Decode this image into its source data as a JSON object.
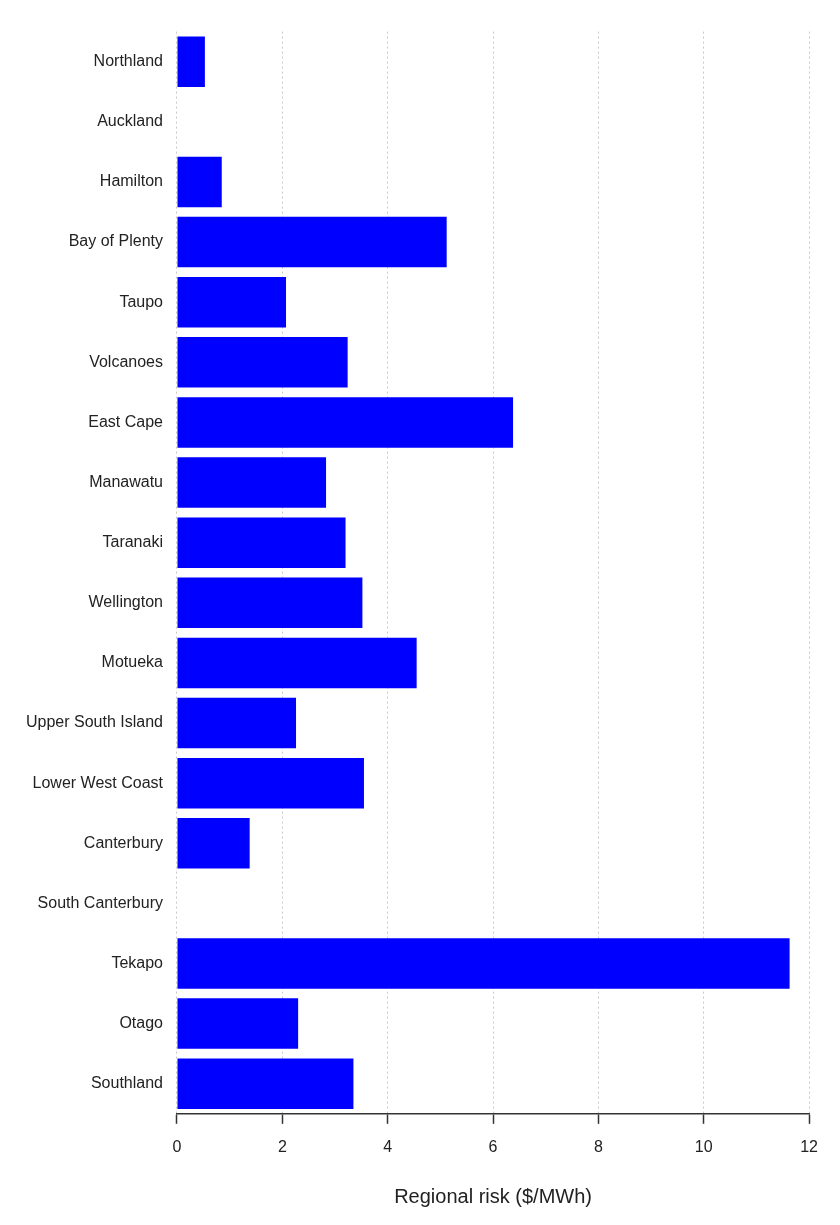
{
  "chart_data": {
    "type": "bar",
    "orientation": "horizontal",
    "xlabel": "Regional risk ($/MWh)",
    "categories": [
      "Northland",
      "Auckland",
      "Hamilton",
      "Bay of Plenty",
      "Taupo",
      "Volcanoes",
      "East Cape",
      "Manawatu",
      "Taranaki",
      "Wellington",
      "Motueka",
      "Upper South Island",
      "Lower West Coast",
      "Canterbury",
      "South Canterbury",
      "Tekapo",
      "Otago",
      "Southland"
    ],
    "values": [
      0.53,
      0,
      0.85,
      5.12,
      2.07,
      3.24,
      6.38,
      2.83,
      3.2,
      3.52,
      4.55,
      2.26,
      3.55,
      1.38,
      0,
      11.63,
      2.3,
      3.35
    ],
    "color": "#0000ff",
    "xlim": [
      0,
      12
    ],
    "xticks": [
      0,
      2,
      4,
      6,
      8,
      10,
      12
    ],
    "grid": "x"
  }
}
